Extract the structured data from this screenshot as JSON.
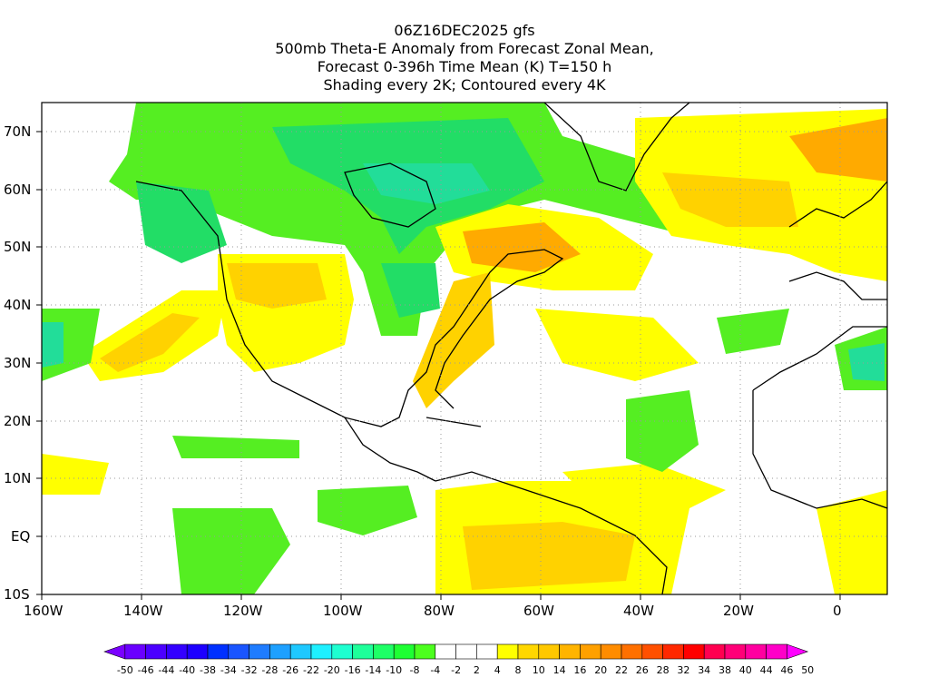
{
  "title": {
    "line1": "06Z16DEC2025 gfs",
    "line2": "500mb Theta-E Anomaly from Forecast Zonal Mean,",
    "line3": "Forecast 0-396h Time Mean (K) T=150 h",
    "line4": "Shading every 2K; Contoured every 4K"
  },
  "axes": {
    "lat_labels": [
      "70N",
      "60N",
      "50N",
      "40N",
      "30N",
      "20N",
      "10N",
      "EQ",
      "10S"
    ],
    "lon_labels": [
      "160W",
      "140W",
      "120W",
      "100W",
      "80W",
      "60W",
      "40W",
      "20W",
      "0"
    ]
  },
  "colorbar": {
    "labels": [
      "-50",
      "-46",
      "-44",
      "-40",
      "-38",
      "-34",
      "-32",
      "-28",
      "-26",
      "-22",
      "-20",
      "-16",
      "-14",
      "-10",
      "-8",
      "-4",
      "-2",
      "2",
      "4",
      "8",
      "10",
      "14",
      "16",
      "20",
      "22",
      "26",
      "28",
      "32",
      "34",
      "38",
      "40",
      "44",
      "46",
      "50"
    ],
    "colors": [
      "#7a00ff",
      "#6a00ff",
      "#4b00ff",
      "#3300ff",
      "#1d00ff",
      "#0030ff",
      "#1a55ff",
      "#1f7cff",
      "#1ea0ff",
      "#1ec8ff",
      "#1ef0ff",
      "#1effd0",
      "#1eff9a",
      "#1eff66",
      "#1eff33",
      "#4cff1e",
      "#ffffff",
      "#ffffff",
      "#ffffff",
      "#ffff00",
      "#ffd700",
      "#ffc800",
      "#ffb400",
      "#ffa000",
      "#ff8c00",
      "#ff7000",
      "#ff5000",
      "#ff2800",
      "#ff0000",
      "#ff0050",
      "#ff0078",
      "#ff00a0",
      "#ff00c8",
      "#ff00ff"
    ]
  },
  "anomaly_colors": {
    "pos_light": "#ffff00",
    "pos_mid": "#ffd200",
    "pos_strong": "#ffaa00",
    "neg_light": "#55ee22",
    "neg_mid": "#22dd66",
    "neg_strong": "#22ddaa"
  }
}
